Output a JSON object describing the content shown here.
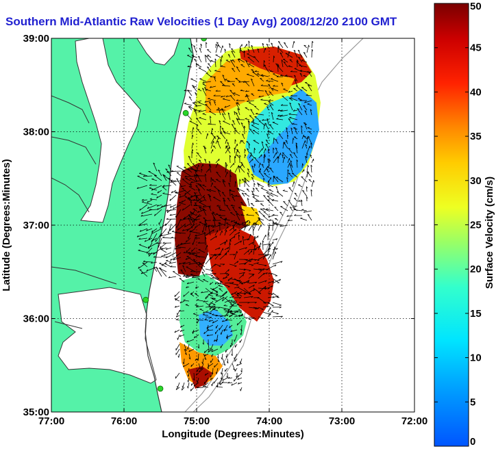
{
  "title": "Southern Mid-Atlantic Raw Velocities (1 Day Avg) 2008/12/20 2100 GMT",
  "xlabel": "Longitude (Degrees:Minutes)",
  "ylabel": "Latitude (Degrees:Minutes)",
  "colorbar_label": "Surface Velocity (cm/s)",
  "x_ticks": [
    "77:00",
    "76:00",
    "75:00",
    "74:00",
    "73:00",
    "72:00"
  ],
  "y_ticks": [
    "39:00",
    "38:00",
    "37:00",
    "36:00",
    "35:00"
  ],
  "colorbar_ticks": [
    "0",
    "5",
    "10",
    "15",
    "20",
    "25",
    "30",
    "35",
    "40",
    "45",
    "50"
  ],
  "colors": {
    "land": "#55f2a8",
    "water": "#ffffff",
    "title": "#1f1fd0",
    "vectors": "#000000",
    "stations": "#2ad62a"
  },
  "chart_data": {
    "type": "heatmap",
    "title": "Southern Mid-Atlantic Raw Velocities (1 Day Avg) 2008/12/20 2100 GMT",
    "xlabel": "Longitude (Degrees:Minutes)",
    "ylabel": "Latitude (Degrees:Minutes)",
    "xlim": [
      -77,
      -72
    ],
    "ylim": [
      35,
      39
    ],
    "colorbar_range": [
      0,
      50
    ],
    "colorbar_units": "cm/s",
    "grid": true,
    "regions": [
      {
        "lon": -74.4,
        "lat": 38.3,
        "speed": 28
      },
      {
        "lon": -73.7,
        "lat": 37.9,
        "speed": 10
      },
      {
        "lon": -74.2,
        "lat": 38.6,
        "speed": 42
      },
      {
        "lon": -75.0,
        "lat": 37.3,
        "speed": 48
      },
      {
        "lon": -74.5,
        "lat": 36.6,
        "speed": 45
      },
      {
        "lon": -74.8,
        "lat": 35.9,
        "speed": 18
      },
      {
        "lon": -74.9,
        "lat": 35.4,
        "speed": 32
      }
    ],
    "stations": [
      {
        "lon": -74.9,
        "lat": 39.0
      },
      {
        "lon": -75.15,
        "lat": 38.2
      },
      {
        "lon": -75.7,
        "lat": 36.2
      },
      {
        "lon": -75.5,
        "lat": 35.25
      }
    ]
  }
}
